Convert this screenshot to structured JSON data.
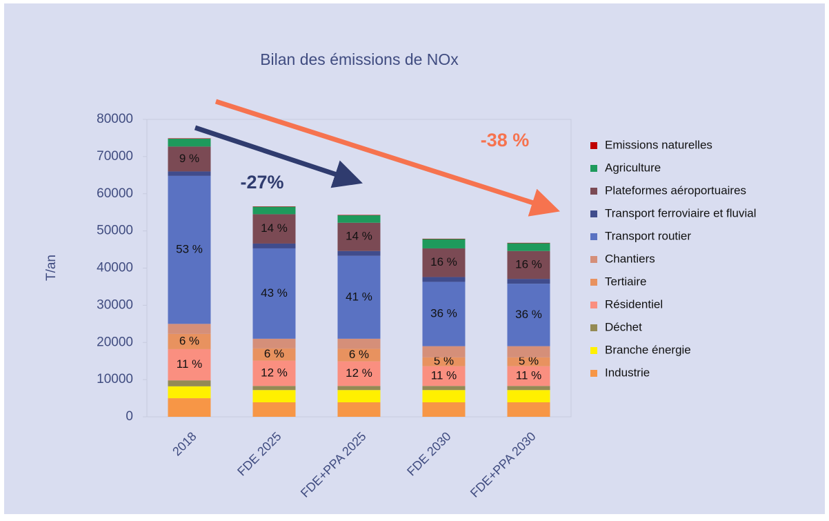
{
  "chart_data": {
    "type": "stacked_bar",
    "title": "Bilan des émissions de NOx",
    "y_label": "T/an",
    "annotations": [
      "-27%",
      "-38 %"
    ],
    "categories": [
      "2018",
      "FDE 2025",
      "FDE+PPA 2025",
      "FDE 2030",
      "FDE+PPA 2030"
    ],
    "ylim": [
      0,
      80000
    ],
    "yticks": [
      0,
      10000,
      20000,
      30000,
      40000,
      50000,
      60000,
      70000,
      80000
    ],
    "series": [
      {
        "name": "Industrie",
        "color": "#f79646",
        "values": [
          5000,
          3900,
          3900,
          3900,
          3900
        ]
      },
      {
        "name": "Branche énergie",
        "color": "#fff000",
        "values": [
          3200,
          3300,
          3300,
          3300,
          3300
        ]
      },
      {
        "name": "Déchet",
        "color": "#948a54",
        "values": [
          1600,
          1100,
          1100,
          1100,
          1100
        ]
      },
      {
        "name": "Résidentiel",
        "color": "#fa8f80",
        "values": [
          8400,
          6800,
          6600,
          5300,
          5300
        ],
        "value_labels": [
          "11 %",
          "12 %",
          "12 %",
          "11 %",
          "11 %"
        ]
      },
      {
        "name": "Tertiaire",
        "color": "#e8925f",
        "values": [
          4100,
          3300,
          3400,
          2400,
          2400
        ],
        "value_labels": [
          "6 %",
          "6 %",
          "6 %",
          "5 %",
          "5 %"
        ]
      },
      {
        "name": "Chantiers",
        "color": "#d58f79",
        "values": [
          2700,
          2600,
          2700,
          3000,
          3000
        ]
      },
      {
        "name": "Transport routier",
        "color": "#5a72c2",
        "values": [
          39800,
          24300,
          22300,
          17300,
          16800
        ],
        "value_labels": [
          "53 %",
          "43 %",
          "41 %",
          "36 %",
          "36 %"
        ]
      },
      {
        "name": "Transport ferroviaire et fluvial",
        "color": "#404c8c",
        "values": [
          1200,
          1300,
          1300,
          1300,
          1300
        ]
      },
      {
        "name": "Plateformes aéroportuaires",
        "color": "#7b4a54",
        "values": [
          6700,
          7900,
          7600,
          7700,
          7500
        ],
        "value_labels": [
          "9 %",
          "14 %",
          "14 %",
          "16 %",
          "16 %"
        ]
      },
      {
        "name": "Agriculture",
        "color": "#1e9a5c",
        "values": [
          2100,
          2000,
          2000,
          2500,
          2100
        ]
      },
      {
        "name": "Emissions naturelles",
        "color": "#c00000",
        "values": [
          100,
          100,
          100,
          100,
          100
        ]
      }
    ]
  }
}
